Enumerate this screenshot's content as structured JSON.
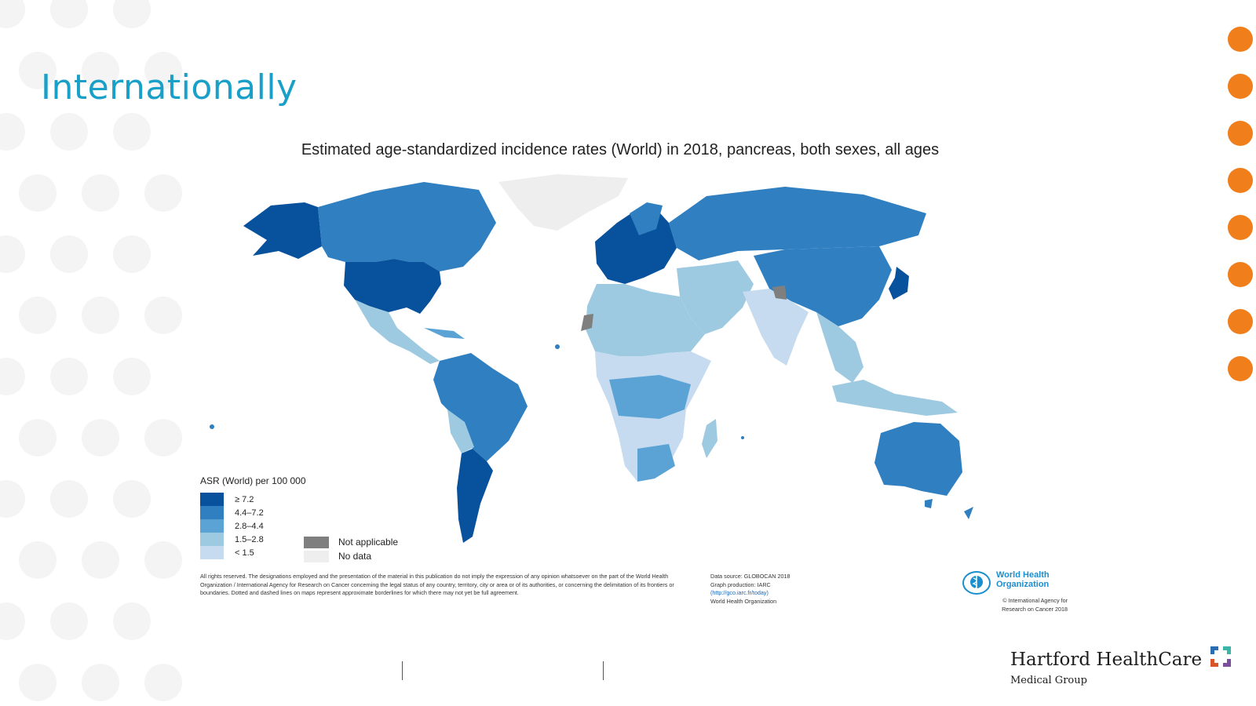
{
  "slide": {
    "title": "Internationally"
  },
  "map": {
    "title": "Estimated age-standardized incidence rates (World) in 2018, pancreas, both sexes, all ages",
    "legend_title": "ASR (World) per 100 000",
    "legend": [
      {
        "label": "≥ 7.2",
        "color": "#08519c"
      },
      {
        "label": "4.4–7.2",
        "color": "#2f7fc1"
      },
      {
        "label": "2.8–4.4",
        "color": "#5ba3d5"
      },
      {
        "label": "1.5–2.8",
        "color": "#9ecae1"
      },
      {
        "label": "< 1.5",
        "color": "#c6dbef"
      }
    ],
    "legend_extra": [
      {
        "label": "Not applicable",
        "color": "#7f7f7f"
      },
      {
        "label": "No data",
        "color": "#eeeeee"
      }
    ],
    "disclaimer": "All rights reserved. The designations employed and the presentation of the material in this publication do not imply the expression of any opinion whatsoever on the part of the World Health Organization / International Agency for Research on Cancer concerning the legal status of any country, territory, city or area or of its authorities, or concerning the delimitation of its frontiers or boundaries. Dotted and dashed lines on maps represent approximate borderlines for which there may not yet be full agreement.",
    "source": {
      "line1": "Data source: GLOBOCAN 2018",
      "line2": "Graph production: IARC",
      "link": "(http://gco.iarc.fr/today)",
      "line4": "World Health Organization"
    },
    "who": {
      "name_line1": "World Health",
      "name_line2": "Organization",
      "copyright_line1": "© International Agency for",
      "copyright_line2": "Research on Cancer 2018"
    }
  },
  "branding": {
    "name": "Hartford HealthCare",
    "subtitle": "Medical Group",
    "accent_color": "#f07f1b",
    "title_color": "#1aa0c8"
  }
}
